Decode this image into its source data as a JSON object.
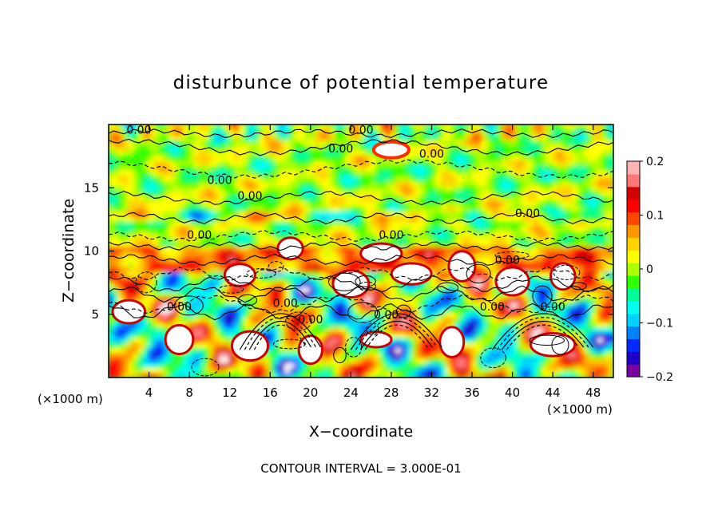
{
  "chart_data": {
    "type": "heatmap",
    "title": "disturbunce of potential temperature",
    "xlabel": "X−coordinate",
    "ylabel": "Z−coordinate",
    "x_unit_left": "(×1000 m)",
    "x_unit_right": "(×1000 m)",
    "x_ticks": [
      4,
      8,
      12,
      16,
      20,
      24,
      28,
      32,
      36,
      40,
      44,
      48
    ],
    "y_ticks": [
      5,
      10,
      15
    ],
    "xlim": [
      0,
      50
    ],
    "ylim": [
      0,
      20
    ],
    "colorbar": {
      "range": [
        -0.2,
        0.2
      ],
      "tick_labels": [
        "0.2",
        "0.1",
        "0",
        "−0.1",
        "−0.2"
      ],
      "tick_values": [
        0.2,
        0.1,
        0,
        -0.1,
        -0.2
      ],
      "colors": [
        "#7a00a0",
        "#1e00c8",
        "#0028ff",
        "#0082ff",
        "#00d2ff",
        "#00fff0",
        "#00ff96",
        "#32ff00",
        "#aaff00",
        "#ffff00",
        "#ffd200",
        "#ff9600",
        "#ff4600",
        "#ff0000",
        "#d20000",
        "#ff7878",
        "#ffb4b4"
      ]
    },
    "contour_labels": [
      {
        "text": "0.00",
        "x": 3,
        "z": 19.6
      },
      {
        "text": "0.00",
        "x": 25,
        "z": 19.6
      },
      {
        "text": "0.00",
        "x": 23,
        "z": 18.1
      },
      {
        "text": "0.00",
        "x": 32,
        "z": 17.7
      },
      {
        "text": "0.00",
        "x": 11,
        "z": 15.6
      },
      {
        "text": "0.00",
        "x": 14,
        "z": 14.4
      },
      {
        "text": "0.00",
        "x": 41.5,
        "z": 13
      },
      {
        "text": "0.00",
        "x": 9,
        "z": 11.3
      },
      {
        "text": "0.00",
        "x": 28,
        "z": 11.3
      },
      {
        "text": "0.00",
        "x": 39.5,
        "z": 9.3
      },
      {
        "text": "0.00",
        "x": 7,
        "z": 5.6
      },
      {
        "text": "0.00",
        "x": 17.5,
        "z": 5.9
      },
      {
        "text": "0.00",
        "x": 20,
        "z": 4.6
      },
      {
        "text": "0.00",
        "x": 27.5,
        "z": 5
      },
      {
        "text": "0.00",
        "x": 38,
        "z": 5.6
      },
      {
        "text": "0.00",
        "x": 44,
        "z": 5.6
      }
    ]
  },
  "footer": {
    "contour_interval": "CONTOUR INTERVAL = 3.000E-01"
  }
}
